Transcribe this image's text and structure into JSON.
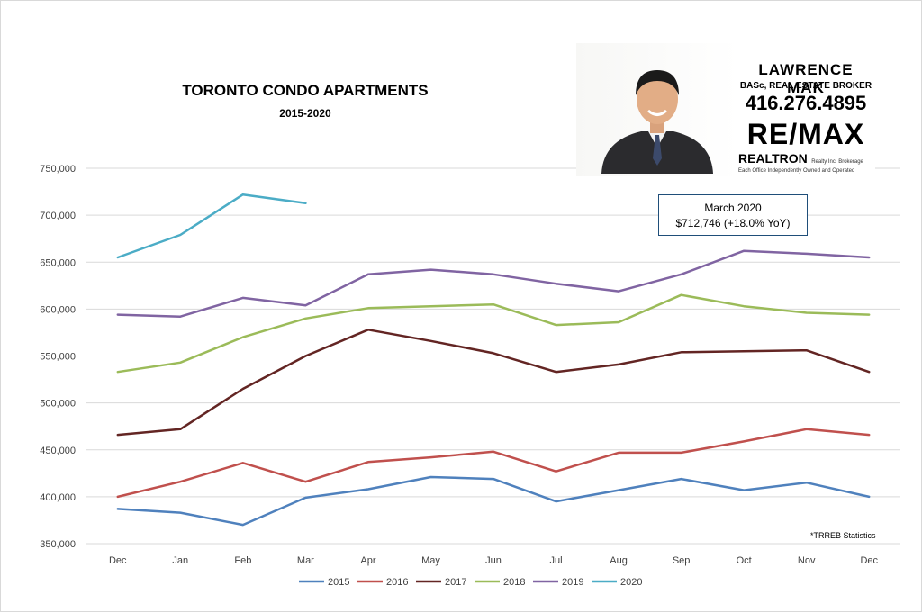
{
  "chart_data": {
    "type": "line",
    "title": "TORONTO CONDO APARTMENTS",
    "subtitle": "2015-2020",
    "xlabel": "",
    "ylabel": "",
    "categories": [
      "Dec",
      "Jan",
      "Feb",
      "Mar",
      "Apr",
      "May",
      "Jun",
      "Jul",
      "Aug",
      "Sep",
      "Oct",
      "Nov",
      "Dec"
    ],
    "y_ticks": [
      "350,000",
      "400,000",
      "450,000",
      "500,000",
      "550,000",
      "600,000",
      "650,000",
      "700,000",
      "750,000"
    ],
    "ylim": [
      350000,
      750000
    ],
    "grid": true,
    "legend_position": "bottom",
    "series": [
      {
        "name": "2015",
        "color": "#4f81bd",
        "values": [
          387000,
          383000,
          370000,
          399000,
          408000,
          421000,
          419000,
          395000,
          407000,
          419000,
          407000,
          415000,
          400000
        ]
      },
      {
        "name": "2016",
        "color": "#c0504d",
        "values": [
          400000,
          416000,
          436000,
          416000,
          437000,
          442000,
          448000,
          427000,
          447000,
          447000,
          459000,
          472000,
          466000
        ]
      },
      {
        "name": "2017",
        "color": "#632523",
        "values": [
          466000,
          472000,
          515000,
          550000,
          578000,
          566000,
          553000,
          533000,
          541000,
          554000,
          555000,
          556000,
          533000
        ]
      },
      {
        "name": "2018",
        "color": "#9bbb59",
        "values": [
          533000,
          543000,
          570000,
          590000,
          601000,
          603000,
          605000,
          583000,
          586000,
          615000,
          603000,
          596000,
          594000
        ]
      },
      {
        "name": "2019",
        "color": "#8064a2",
        "values": [
          594000,
          592000,
          612000,
          604000,
          637000,
          642000,
          637000,
          627000,
          619000,
          637000,
          662000,
          659000,
          655000
        ]
      },
      {
        "name": "2020",
        "color": "#4bacc6",
        "values": [
          655000,
          679000,
          722000,
          712746,
          null,
          null,
          null,
          null,
          null,
          null,
          null,
          null,
          null
        ]
      }
    ]
  },
  "callout": {
    "line1": "March 2020",
    "line2": "$712,746  (+18.0% YoY)"
  },
  "source_note": "*TRREB Statistics",
  "agent_card": {
    "name": "LAWRENCE MAK",
    "credentials": "BASc, REAL ESTATE BROKER",
    "phone": "416.276.4895",
    "logo_text": "RE/MAX",
    "brokerage": "REALTRON",
    "brokerage_suffix": "Realty Inc. Brokerage",
    "office_note": "Each Office Independently Owned and Operated"
  },
  "colors": {
    "gridline": "#d9d9d9",
    "callout_border": "#1f4e79"
  }
}
